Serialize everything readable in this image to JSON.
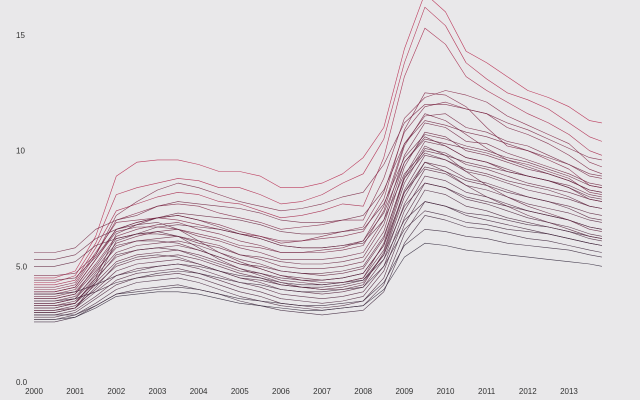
{
  "chart_data": {
    "type": "line",
    "title": "",
    "xlabel": "",
    "ylabel": "",
    "xlim": [
      2000,
      2013.9
    ],
    "ylim": [
      0,
      15.0
    ],
    "y_ticks": [
      {
        "value": 0,
        "label": "0.0"
      },
      {
        "value": 5,
        "label": "5.0"
      },
      {
        "value": 10,
        "label": "10"
      },
      {
        "value": 15,
        "label": "15"
      }
    ],
    "x_ticks": [
      {
        "value": 2000,
        "label": "2000"
      },
      {
        "value": 2001,
        "label": "2001"
      },
      {
        "value": 2002,
        "label": "2002"
      },
      {
        "value": 2003,
        "label": "2003"
      },
      {
        "value": 2004,
        "label": "2004"
      },
      {
        "value": 2005,
        "label": "2005"
      },
      {
        "value": 2006,
        "label": "2006"
      },
      {
        "value": 2007,
        "label": "2007"
      },
      {
        "value": 2008,
        "label": "2008"
      },
      {
        "value": 2009,
        "label": "2009"
      },
      {
        "value": 2010,
        "label": "2010"
      },
      {
        "value": 2011,
        "label": "2011"
      },
      {
        "value": 2012,
        "label": "2012"
      },
      {
        "value": 2013,
        "label": "2013"
      }
    ],
    "grid": false,
    "legend": "none",
    "colors": {
      "low": "#2a2135",
      "high": "#b51f45"
    },
    "x": [
      2000.0,
      2000.5,
      2001.0,
      2001.5,
      2002.0,
      2002.5,
      2003.0,
      2003.5,
      2004.0,
      2004.5,
      2005.0,
      2005.5,
      2006.0,
      2006.5,
      2007.0,
      2007.5,
      2008.0,
      2008.5,
      2009.0,
      2009.5,
      2010.0,
      2010.5,
      2011.0,
      2011.5,
      2012.0,
      2012.5,
      2013.0,
      2013.5,
      2013.8
    ],
    "series": [
      {
        "values": [
          4.5,
          4.5,
          4.8,
          6.3,
          8.9,
          9.5,
          9.6,
          9.6,
          9.4,
          9.1,
          9.1,
          8.9,
          8.4,
          8.4,
          8.6,
          9.0,
          9.7,
          11.0,
          14.4,
          16.8,
          16.0,
          14.3,
          13.8,
          13.2,
          12.6,
          12.3,
          11.9,
          11.3,
          11.2
        ]
      },
      {
        "values": [
          4.3,
          4.3,
          4.6,
          6.0,
          8.1,
          8.4,
          8.6,
          8.8,
          8.7,
          8.4,
          8.4,
          8.1,
          7.7,
          7.8,
          8.1,
          8.6,
          9.0,
          10.5,
          13.8,
          16.2,
          15.4,
          13.8,
          13.1,
          12.5,
          12.2,
          11.8,
          11.2,
          10.6,
          10.4
        ]
      },
      {
        "values": [
          4.2,
          4.2,
          4.4,
          5.8,
          7.4,
          7.7,
          8.0,
          8.2,
          8.1,
          7.8,
          7.7,
          7.4,
          7.1,
          7.2,
          7.4,
          7.7,
          7.6,
          9.7,
          13.2,
          15.3,
          14.6,
          13.2,
          12.6,
          12.1,
          11.6,
          11.2,
          10.7,
          10.0,
          9.8
        ]
      },
      {
        "values": [
          4.0,
          4.0,
          4.2,
          5.5,
          7.0,
          7.3,
          7.6,
          7.7,
          7.6,
          7.3,
          7.1,
          6.9,
          6.6,
          6.7,
          6.8,
          7.0,
          7.0,
          8.8,
          11.4,
          12.3,
          12.6,
          12.4,
          12.1,
          11.5,
          11.1,
          10.7,
          10.3,
          9.5,
          9.3
        ]
      },
      {
        "values": [
          3.9,
          3.9,
          4.1,
          5.3,
          6.6,
          6.9,
          7.1,
          7.2,
          7.0,
          6.8,
          6.5,
          6.3,
          6.0,
          6.1,
          6.3,
          6.5,
          6.7,
          8.2,
          10.8,
          11.9,
          12.1,
          11.8,
          11.6,
          11.0,
          10.7,
          10.3,
          9.8,
          9.2,
          9.0
        ]
      },
      {
        "values": [
          3.8,
          3.8,
          4.0,
          5.1,
          6.3,
          6.6,
          6.8,
          6.9,
          6.6,
          6.4,
          6.1,
          5.9,
          5.6,
          5.6,
          5.7,
          5.8,
          6.1,
          7.6,
          10.3,
          11.5,
          11.6,
          11.0,
          10.8,
          10.4,
          10.2,
          9.8,
          9.4,
          8.9,
          8.8
        ]
      },
      {
        "values": [
          3.7,
          3.7,
          3.9,
          4.9,
          6.0,
          6.3,
          6.5,
          6.6,
          6.3,
          6.1,
          5.8,
          5.6,
          5.3,
          5.3,
          5.3,
          5.4,
          5.6,
          7.0,
          9.8,
          11.2,
          11.0,
          10.4,
          10.3,
          9.9,
          9.6,
          9.3,
          9.0,
          8.6,
          8.5
        ]
      },
      {
        "values": [
          3.6,
          3.6,
          3.8,
          4.8,
          5.8,
          6.1,
          6.2,
          6.3,
          6.1,
          5.9,
          5.5,
          5.3,
          5.0,
          4.9,
          4.9,
          5.0,
          5.2,
          6.5,
          9.3,
          10.8,
          10.6,
          10.0,
          9.8,
          9.5,
          9.2,
          9.0,
          8.7,
          8.3,
          8.2
        ]
      },
      {
        "values": [
          3.5,
          3.5,
          3.7,
          4.6,
          5.6,
          5.9,
          6.0,
          6.1,
          5.9,
          5.6,
          5.3,
          5.1,
          4.8,
          4.7,
          4.6,
          4.7,
          4.9,
          6.2,
          8.9,
          10.4,
          10.2,
          9.7,
          9.5,
          9.2,
          8.9,
          8.7,
          8.5,
          8.1,
          8.0
        ]
      },
      {
        "values": [
          3.4,
          3.4,
          3.6,
          4.5,
          5.4,
          5.7,
          5.8,
          5.9,
          5.7,
          5.4,
          5.1,
          4.9,
          4.6,
          4.5,
          4.4,
          4.5,
          4.7,
          5.9,
          8.6,
          10.1,
          9.9,
          9.4,
          9.2,
          8.9,
          8.6,
          8.4,
          8.2,
          7.9,
          7.8
        ]
      },
      {
        "values": [
          3.3,
          3.3,
          3.5,
          4.3,
          5.2,
          5.5,
          5.6,
          5.7,
          5.5,
          5.2,
          4.9,
          4.7,
          4.4,
          4.3,
          4.2,
          4.3,
          4.5,
          5.7,
          8.3,
          9.8,
          9.6,
          9.1,
          8.9,
          8.6,
          8.3,
          8.1,
          7.9,
          7.6,
          7.5
        ]
      },
      {
        "values": [
          3.2,
          3.2,
          3.4,
          4.2,
          5.0,
          5.3,
          5.4,
          5.5,
          5.3,
          5.0,
          4.7,
          4.5,
          4.2,
          4.1,
          4.0,
          4.1,
          4.3,
          5.5,
          8.0,
          9.5,
          9.3,
          8.8,
          8.6,
          8.3,
          8.0,
          7.8,
          7.6,
          7.3,
          7.2
        ]
      },
      {
        "values": [
          3.1,
          3.1,
          3.3,
          4.0,
          4.8,
          5.1,
          5.2,
          5.3,
          5.1,
          4.8,
          4.5,
          4.3,
          4.0,
          3.9,
          3.8,
          3.9,
          4.1,
          5.3,
          7.7,
          9.2,
          9.0,
          8.5,
          8.3,
          8.0,
          7.7,
          7.5,
          7.3,
          7.0,
          6.9
        ]
      },
      {
        "values": [
          3.0,
          3.0,
          3.2,
          3.9,
          4.6,
          4.9,
          5.0,
          5.1,
          4.9,
          4.6,
          4.3,
          4.1,
          3.8,
          3.7,
          3.6,
          3.7,
          3.9,
          5.0,
          7.4,
          8.9,
          8.7,
          8.2,
          8.0,
          7.7,
          7.4,
          7.2,
          7.0,
          6.7,
          6.6
        ]
      },
      {
        "values": [
          2.9,
          2.9,
          3.1,
          3.7,
          4.4,
          4.7,
          4.8,
          4.9,
          4.7,
          4.4,
          4.1,
          3.9,
          3.6,
          3.5,
          3.4,
          3.5,
          3.7,
          4.8,
          7.1,
          8.6,
          8.4,
          7.9,
          7.7,
          7.4,
          7.1,
          6.9,
          6.7,
          6.4,
          6.3
        ]
      },
      {
        "values": [
          2.8,
          2.8,
          3.0,
          3.6,
          4.2,
          4.5,
          4.6,
          4.7,
          4.5,
          4.2,
          3.9,
          3.7,
          3.4,
          3.3,
          3.2,
          3.3,
          3.5,
          4.5,
          6.8,
          8.3,
          8.1,
          7.6,
          7.4,
          7.1,
          6.9,
          6.7,
          6.5,
          6.2,
          6.1
        ]
      },
      {
        "values": [
          2.7,
          2.7,
          2.9,
          3.4,
          4.0,
          4.3,
          4.4,
          4.5,
          4.3,
          4.0,
          3.7,
          3.5,
          3.3,
          3.2,
          3.1,
          3.2,
          3.3,
          4.2,
          6.4,
          7.8,
          7.6,
          7.2,
          7.0,
          6.8,
          6.6,
          6.4,
          6.2,
          6.0,
          5.9
        ]
      },
      {
        "values": [
          2.6,
          2.6,
          2.8,
          3.3,
          3.8,
          4.0,
          4.1,
          4.2,
          4.0,
          3.8,
          3.5,
          3.3,
          3.1,
          3.0,
          2.9,
          3.0,
          3.1,
          3.9,
          6.0,
          7.2,
          7.0,
          6.7,
          6.6,
          6.4,
          6.2,
          6.1,
          5.9,
          5.7,
          5.6
        ]
      },
      {
        "values": [
          4.1,
          4.1,
          4.3,
          5.6,
          6.9,
          7.0,
          7.1,
          7.0,
          6.8,
          6.6,
          6.4,
          6.3,
          6.1,
          6.1,
          6.2,
          6.3,
          6.5,
          7.9,
          10.9,
          12.5,
          12.4,
          11.9,
          11.0,
          10.2,
          10.0,
          9.6,
          9.2,
          8.5,
          8.4
        ]
      },
      {
        "values": [
          3.9,
          3.9,
          4.1,
          5.3,
          6.5,
          6.7,
          6.7,
          6.6,
          6.4,
          6.2,
          5.9,
          5.8,
          5.6,
          5.6,
          5.6,
          5.7,
          5.9,
          7.4,
          10.2,
          11.6,
          11.3,
          10.7,
          10.1,
          9.6,
          9.4,
          9.1,
          8.8,
          8.2,
          8.1
        ]
      },
      {
        "values": [
          3.6,
          3.6,
          3.8,
          5.0,
          6.2,
          6.4,
          6.4,
          6.3,
          6.0,
          5.8,
          5.5,
          5.4,
          5.2,
          5.1,
          5.1,
          5.2,
          5.4,
          6.8,
          9.5,
          10.6,
          10.2,
          9.7,
          9.5,
          9.1,
          8.9,
          8.7,
          8.4,
          7.9,
          7.8
        ]
      },
      {
        "values": [
          3.4,
          3.4,
          3.6,
          4.7,
          5.9,
          6.1,
          6.1,
          6.0,
          5.7,
          5.4,
          5.1,
          5.0,
          4.8,
          4.7,
          4.7,
          4.8,
          5.0,
          6.3,
          8.8,
          9.9,
          9.6,
          9.2,
          9.0,
          8.7,
          8.5,
          8.3,
          8.0,
          7.6,
          7.5
        ]
      },
      {
        "values": [
          3.2,
          3.2,
          3.4,
          4.4,
          5.5,
          5.7,
          5.8,
          5.7,
          5.4,
          5.1,
          4.8,
          4.7,
          4.5,
          4.4,
          4.4,
          4.5,
          4.7,
          5.9,
          8.2,
          9.3,
          9.1,
          8.7,
          8.5,
          8.2,
          8.0,
          7.8,
          7.5,
          7.1,
          7.0
        ]
      },
      {
        "values": [
          3.0,
          3.0,
          3.2,
          4.1,
          5.1,
          5.4,
          5.5,
          5.4,
          5.1,
          4.8,
          4.5,
          4.4,
          4.2,
          4.1,
          4.1,
          4.2,
          4.4,
          5.5,
          7.6,
          8.6,
          8.4,
          8.0,
          7.8,
          7.6,
          7.4,
          7.2,
          7.0,
          6.7,
          6.6
        ]
      },
      {
        "values": [
          5.6,
          5.6,
          5.8,
          6.6,
          7.0,
          7.2,
          7.6,
          7.8,
          7.7,
          7.6,
          7.5,
          7.3,
          7.0,
          6.9,
          6.9,
          7.0,
          7.2,
          8.3,
          10.3,
          11.3,
          11.1,
          10.8,
          10.6,
          10.3,
          10.0,
          9.7,
          9.4,
          9.0,
          8.9
        ]
      },
      {
        "values": [
          5.3,
          5.3,
          5.5,
          6.2,
          6.6,
          6.8,
          7.1,
          7.3,
          7.2,
          7.1,
          7.0,
          6.8,
          6.5,
          6.4,
          6.4,
          6.5,
          6.6,
          7.7,
          9.7,
          10.7,
          10.5,
          10.2,
          10.0,
          9.7,
          9.5,
          9.2,
          8.9,
          8.5,
          8.4
        ]
      },
      {
        "values": [
          5.0,
          5.0,
          5.2,
          5.9,
          6.2,
          6.4,
          6.7,
          6.8,
          6.7,
          6.6,
          6.4,
          6.2,
          5.9,
          5.8,
          5.8,
          5.9,
          6.0,
          7.0,
          9.0,
          10.0,
          9.8,
          9.5,
          9.3,
          9.1,
          8.9,
          8.7,
          8.4,
          8.0,
          7.9
        ]
      },
      {
        "values": [
          3.8,
          3.8,
          3.9,
          4.2,
          4.6,
          4.8,
          5.0,
          5.1,
          5.0,
          4.8,
          4.6,
          4.5,
          4.3,
          4.2,
          4.2,
          4.3,
          4.4,
          5.3,
          7.0,
          7.8,
          7.6,
          7.3,
          7.2,
          7.0,
          6.8,
          6.7,
          6.5,
          6.3,
          6.2
        ]
      },
      {
        "values": [
          3.5,
          3.5,
          3.6,
          3.9,
          4.3,
          4.5,
          4.7,
          4.8,
          4.7,
          4.5,
          4.3,
          4.2,
          4.0,
          3.9,
          3.9,
          4.0,
          4.1,
          5.0,
          6.6,
          7.4,
          7.2,
          6.9,
          6.8,
          6.6,
          6.5,
          6.4,
          6.2,
          6.0,
          5.9
        ]
      },
      {
        "values": [
          2.9,
          2.9,
          2.9,
          3.3,
          3.8,
          3.9,
          4.0,
          4.1,
          4.0,
          3.8,
          3.6,
          3.5,
          3.4,
          3.3,
          3.3,
          3.4,
          3.5,
          4.3,
          5.9,
          6.6,
          6.5,
          6.3,
          6.2,
          6.0,
          5.9,
          5.8,
          5.7,
          5.5,
          5.4
        ]
      },
      {
        "values": [
          3.3,
          3.3,
          3.4,
          4.5,
          6.4,
          6.8,
          6.9,
          6.6,
          6.1,
          5.6,
          5.2,
          4.9,
          4.6,
          4.4,
          4.3,
          4.3,
          4.5,
          6.0,
          8.8,
          10.2,
          9.8,
          9.1,
          8.5,
          8.0,
          7.6,
          7.3,
          7.0,
          6.6,
          6.5
        ]
      },
      {
        "values": [
          3.1,
          3.1,
          3.2,
          4.3,
          6.1,
          6.4,
          6.5,
          6.3,
          5.8,
          5.3,
          4.9,
          4.6,
          4.3,
          4.1,
          4.0,
          4.0,
          4.2,
          5.6,
          8.2,
          9.5,
          9.1,
          8.5,
          8.0,
          7.6,
          7.2,
          6.9,
          6.6,
          6.3,
          6.2
        ]
      },
      {
        "values": [
          4.6,
          4.6,
          4.7,
          5.5,
          7.2,
          7.8,
          8.3,
          8.6,
          8.4,
          8.1,
          7.8,
          7.6,
          7.4,
          7.5,
          7.7,
          8.0,
          8.2,
          9.4,
          11.2,
          12.0,
          12.0,
          11.8,
          11.6,
          11.2,
          10.9,
          10.5,
          10.1,
          9.7,
          9.6
        ]
      },
      {
        "values": [
          2.7,
          2.7,
          2.8,
          3.2,
          3.7,
          3.8,
          3.9,
          3.9,
          3.8,
          3.6,
          3.4,
          3.3,
          3.2,
          3.1,
          3.1,
          3.2,
          3.3,
          4.0,
          5.4,
          6.0,
          5.9,
          5.7,
          5.6,
          5.5,
          5.4,
          5.3,
          5.2,
          5.1,
          5.0
        ]
      },
      {
        "values": [
          4.4,
          4.4,
          4.5,
          5.4,
          6.6,
          6.9,
          7.1,
          7.2,
          7.0,
          6.7,
          6.4,
          6.2,
          5.9,
          5.8,
          5.8,
          5.9,
          6.1,
          7.3,
          9.5,
          10.5,
          10.3,
          10.1,
          9.9,
          9.6,
          9.3,
          9.0,
          8.7,
          8.3,
          8.2
        ]
      }
    ]
  }
}
